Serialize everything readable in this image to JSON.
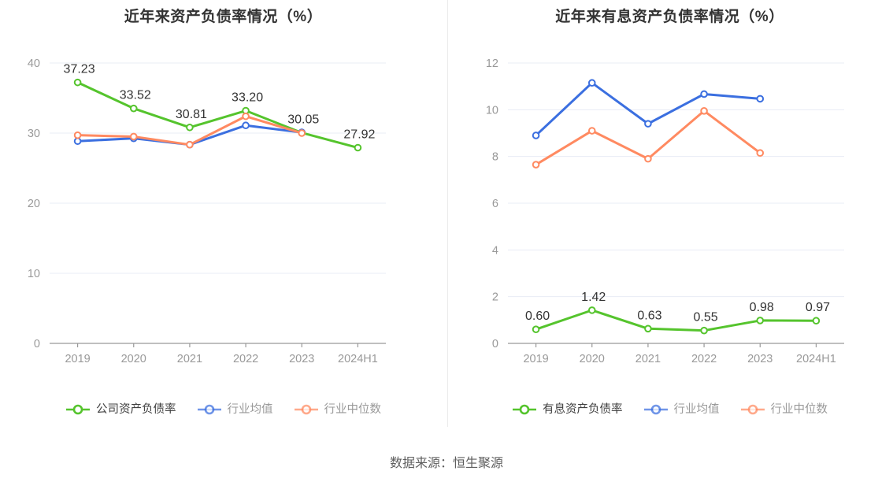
{
  "page": {
    "source_note": "数据来源：恒生聚源"
  },
  "colors": {
    "company_green": "#55c42d",
    "industry_mean_blue": "#3b6fe0",
    "industry_median_orange": "#ff8a61",
    "gridline": "#e8ecf4",
    "axis": "#999999",
    "tick_label": "#999999",
    "title_text": "#333333",
    "value_label": "#333333",
    "legend_label_emphasis": "#404040",
    "legend_label_muted": "#999999"
  },
  "chart_data": [
    {
      "type": "line",
      "title": "近年来资产负债率情况（%）",
      "categories": [
        "2019",
        "2020",
        "2021",
        "2022",
        "2023",
        "2024H1"
      ],
      "ylim": [
        0,
        40
      ],
      "yticks": [
        0,
        10,
        20,
        30,
        40
      ],
      "grid": true,
      "legend_position": "bottom",
      "series": [
        {
          "key": "company",
          "name": "公司资产负债率",
          "color": "#55c42d",
          "values": [
            37.23,
            33.52,
            30.81,
            33.2,
            30.05,
            27.92
          ],
          "labels": [
            "37.23",
            "33.52",
            "30.81",
            "33.20",
            "30.05",
            "27.92"
          ],
          "legend_label_color": "#404040",
          "legend_emphasis": true
        },
        {
          "key": "industry-mean",
          "name": "行业均值",
          "color": "#3b6fe0",
          "values": [
            28.85,
            29.25,
            28.35,
            31.1,
            30.1
          ],
          "legend_label_color": "#999999",
          "legend_emphasis": false
        },
        {
          "key": "industry-median",
          "name": "行业中位数",
          "color": "#ff8a61",
          "values": [
            29.7,
            29.5,
            28.35,
            32.4,
            30.0
          ],
          "legend_label_color": "#999999",
          "legend_emphasis": false
        }
      ]
    },
    {
      "type": "line",
      "title": "近年来有息资产负债率情况（%）",
      "categories": [
        "2019",
        "2020",
        "2021",
        "2022",
        "2023",
        "2024H1"
      ],
      "ylim": [
        0,
        12
      ],
      "yticks": [
        0,
        2,
        4,
        6,
        8,
        10,
        12
      ],
      "grid": true,
      "legend_position": "bottom",
      "series": [
        {
          "key": "company",
          "name": "有息资产负债率",
          "color": "#55c42d",
          "values": [
            0.6,
            1.42,
            0.63,
            0.55,
            0.98,
            0.97
          ],
          "labels": [
            "0.60",
            "1.42",
            "0.63",
            "0.55",
            "0.98",
            "0.97"
          ],
          "legend_label_color": "#404040",
          "legend_emphasis": true
        },
        {
          "key": "industry-mean",
          "name": "行业均值",
          "color": "#3b6fe0",
          "values": [
            8.9,
            11.15,
            9.4,
            10.67,
            10.47
          ],
          "legend_label_color": "#999999",
          "legend_emphasis": false
        },
        {
          "key": "industry-median",
          "name": "行业中位数",
          "color": "#ff8a61",
          "values": [
            7.65,
            9.1,
            7.9,
            9.95,
            8.15
          ],
          "legend_label_color": "#999999",
          "legend_emphasis": false
        }
      ]
    }
  ]
}
